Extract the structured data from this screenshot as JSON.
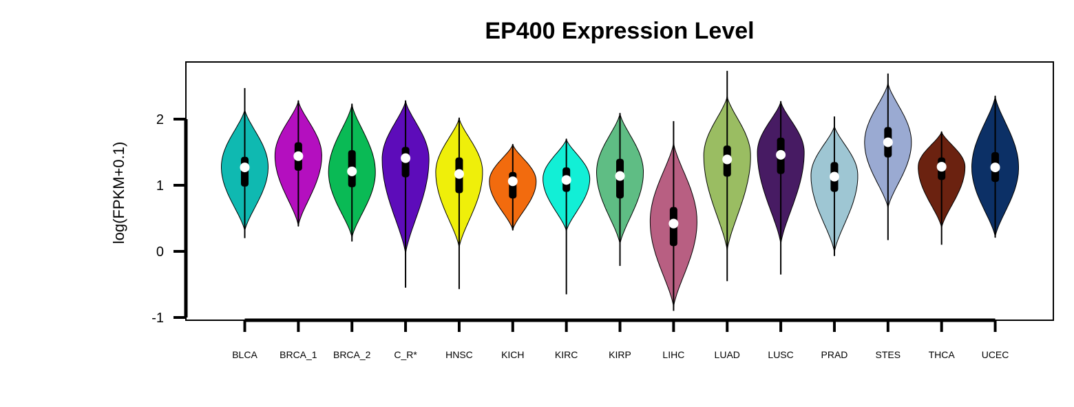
{
  "chart_data": {
    "type": "violin",
    "title": "EP400 Expression Level",
    "xlabel": "",
    "ylabel": "log(FPKM+0.1)",
    "ylim": [
      -1.05,
      2.9
    ],
    "yticks": [
      -1,
      0,
      1,
      2
    ],
    "grid": false,
    "legend": "none",
    "categories": [
      "BLCA",
      "BRCA_1",
      "BRCA_2",
      "C_R*",
      "HNSC",
      "KICH",
      "KIRC",
      "KIRP",
      "LIHC",
      "LUAD",
      "LUSC",
      "PRAD",
      "STES",
      "THCA",
      "UCEC"
    ],
    "colors": [
      "#0fb9b1",
      "#b40fbf",
      "#0aba55",
      "#5d0cba",
      "#efef0a",
      "#f26b0e",
      "#12efd6",
      "#5fbd84",
      "#b85f82",
      "#9abd62",
      "#471b63",
      "#9ec6d3",
      "#9aaad2",
      "#6b2210",
      "#0c3066"
    ],
    "series": [
      {
        "min": 0.2,
        "q1": 0.98,
        "median": 1.27,
        "q3": 1.43,
        "max": 2.47,
        "violin_min": 0.3,
        "violin_max": 2.15,
        "mode": 1.28
      },
      {
        "min": 0.38,
        "q1": 1.22,
        "median": 1.44,
        "q3": 1.65,
        "max": 2.28,
        "violin_min": 0.38,
        "violin_max": 2.28,
        "mode": 1.45
      },
      {
        "min": 0.15,
        "q1": 0.97,
        "median": 1.21,
        "q3": 1.53,
        "max": 2.23,
        "violin_min": 0.2,
        "violin_max": 2.23,
        "mode": 1.2
      },
      {
        "min": -0.55,
        "q1": 1.12,
        "median": 1.41,
        "q3": 1.58,
        "max": 2.28,
        "violin_min": -0.05,
        "violin_max": 2.28,
        "mode": 1.4
      },
      {
        "min": -0.57,
        "q1": 0.88,
        "median": 1.17,
        "q3": 1.42,
        "max": 2.02,
        "violin_min": 0.05,
        "violin_max": 2.02,
        "mode": 1.2
      },
      {
        "min": 0.32,
        "q1": 0.8,
        "median": 1.06,
        "q3": 1.2,
        "max": 1.62,
        "violin_min": 0.32,
        "violin_max": 1.62,
        "mode": 1.06
      },
      {
        "min": -0.65,
        "q1": 0.9,
        "median": 1.08,
        "q3": 1.27,
        "max": 1.7,
        "violin_min": 0.3,
        "violin_max": 1.7,
        "mode": 1.1
      },
      {
        "min": -0.22,
        "q1": 0.8,
        "median": 1.14,
        "q3": 1.4,
        "max": 2.09,
        "violin_min": 0.1,
        "violin_max": 2.09,
        "mode": 1.2
      },
      {
        "min": -0.9,
        "q1": 0.08,
        "median": 0.42,
        "q3": 0.67,
        "max": 1.97,
        "violin_min": -0.85,
        "violin_max": 1.65,
        "mode": 0.45
      },
      {
        "min": -0.45,
        "q1": 1.13,
        "median": 1.39,
        "q3": 1.6,
        "max": 2.73,
        "violin_min": 0.0,
        "violin_max": 2.35,
        "mode": 1.45
      },
      {
        "min": -0.35,
        "q1": 1.17,
        "median": 1.46,
        "q3": 1.72,
        "max": 2.27,
        "violin_min": 0.1,
        "violin_max": 2.27,
        "mode": 1.5
      },
      {
        "min": -0.07,
        "q1": 0.9,
        "median": 1.13,
        "q3": 1.35,
        "max": 2.04,
        "violin_min": -0.02,
        "violin_max": 1.9,
        "mode": 1.15
      },
      {
        "min": 0.17,
        "q1": 1.42,
        "median": 1.65,
        "q3": 1.88,
        "max": 2.69,
        "violin_min": 0.65,
        "violin_max": 2.55,
        "mode": 1.65
      },
      {
        "min": 0.1,
        "q1": 1.08,
        "median": 1.28,
        "q3": 1.42,
        "max": 1.81,
        "violin_min": 0.35,
        "violin_max": 1.81,
        "mode": 1.28
      },
      {
        "min": 0.21,
        "q1": 1.05,
        "median": 1.27,
        "q3": 1.5,
        "max": 2.35,
        "violin_min": 0.21,
        "violin_max": 2.35,
        "mode": 1.27
      }
    ]
  }
}
